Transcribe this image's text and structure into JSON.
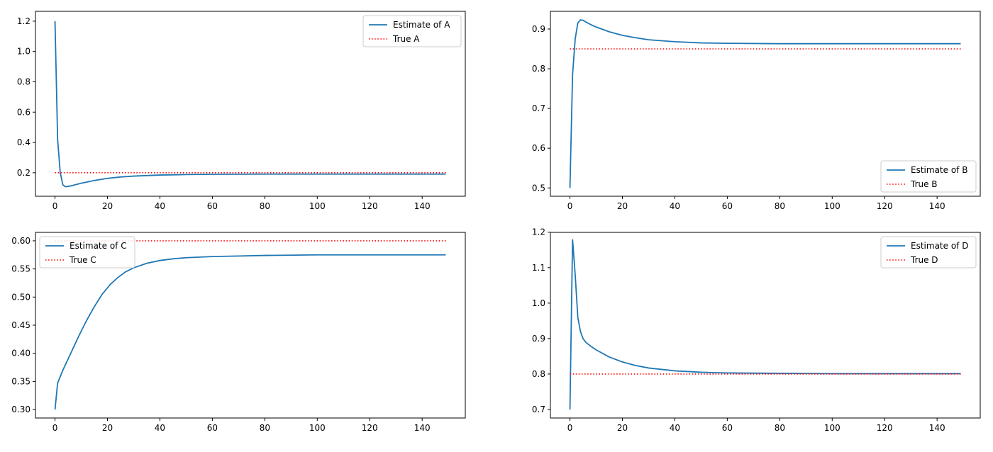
{
  "colors": {
    "estimate": "#1f77b4",
    "truth": "#ff0000",
    "axis": "#000000",
    "legend_border": "#cccccc"
  },
  "chart_data": [
    {
      "type": "line",
      "id": "A",
      "x_ticks": [
        0,
        20,
        40,
        60,
        80,
        100,
        120,
        140
      ],
      "y_ticks": [
        0.2,
        0.4,
        0.6,
        0.8,
        1.0,
        1.2
      ],
      "y_tick_labels": [
        "0.2",
        "0.4",
        "0.6",
        "0.8",
        "1.0",
        "1.2"
      ],
      "xlim": [
        -7.45,
        156.45
      ],
      "ylim": [
        0.045,
        1.265
      ],
      "legend": "top-right",
      "series": [
        {
          "name": "Estimate of A",
          "style": "solid",
          "color": "#1f77b4",
          "x": [
            0,
            1,
            2,
            3,
            4,
            6,
            8,
            10,
            15,
            20,
            25,
            30,
            40,
            50,
            60,
            80,
            100,
            120,
            149
          ],
          "y": [
            1.2,
            0.42,
            0.2,
            0.12,
            0.108,
            0.113,
            0.122,
            0.131,
            0.149,
            0.163,
            0.172,
            0.178,
            0.185,
            0.188,
            0.19,
            0.191,
            0.191,
            0.191,
            0.191
          ]
        },
        {
          "name": "True A",
          "style": "dotted",
          "color": "#ff0000",
          "x": [
            0,
            149
          ],
          "y": [
            0.2,
            0.2
          ]
        }
      ]
    },
    {
      "type": "line",
      "id": "B",
      "x_ticks": [
        0,
        20,
        40,
        60,
        80,
        100,
        120,
        140
      ],
      "y_ticks": [
        0.5,
        0.6,
        0.7,
        0.8,
        0.9
      ],
      "y_tick_labels": [
        "0.5",
        "0.6",
        "0.7",
        "0.8",
        "0.9"
      ],
      "xlim": [
        -7.45,
        156.45
      ],
      "ylim": [
        0.4791,
        0.9445
      ],
      "legend": "bottom-right",
      "series": [
        {
          "name": "Estimate of B",
          "style": "solid",
          "color": "#1f77b4",
          "x": [
            0,
            1,
            2,
            3,
            4,
            5,
            6,
            8,
            10,
            15,
            20,
            25,
            30,
            40,
            50,
            60,
            80,
            100,
            120,
            149
          ],
          "y": [
            0.5,
            0.785,
            0.875,
            0.915,
            0.923,
            0.922,
            0.918,
            0.911,
            0.905,
            0.893,
            0.884,
            0.878,
            0.873,
            0.868,
            0.865,
            0.864,
            0.863,
            0.863,
            0.863,
            0.863
          ]
        },
        {
          "name": "True B",
          "style": "dotted",
          "color": "#ff0000",
          "x": [
            0,
            149
          ],
          "y": [
            0.85,
            0.85
          ]
        }
      ]
    },
    {
      "type": "line",
      "id": "C",
      "x_ticks": [
        0,
        20,
        40,
        60,
        80,
        100,
        120,
        140
      ],
      "y_ticks": [
        0.3,
        0.35,
        0.4,
        0.45,
        0.5,
        0.55,
        0.6
      ],
      "y_tick_labels": [
        "0.30",
        "0.35",
        "0.40",
        "0.45",
        "0.50",
        "0.55",
        "0.60"
      ],
      "xlim": [
        -7.45,
        156.45
      ],
      "ylim": [
        0.285,
        0.615
      ],
      "legend": "top-left",
      "series": [
        {
          "name": "Estimate of C",
          "style": "solid",
          "color": "#1f77b4",
          "x": [
            0,
            1,
            3,
            6,
            9,
            12,
            15,
            18,
            21,
            24,
            27,
            30,
            35,
            40,
            45,
            50,
            60,
            70,
            80,
            100,
            120,
            149
          ],
          "y": [
            0.3,
            0.347,
            0.37,
            0.4,
            0.43,
            0.458,
            0.483,
            0.505,
            0.522,
            0.535,
            0.545,
            0.552,
            0.56,
            0.565,
            0.568,
            0.57,
            0.572,
            0.573,
            0.574,
            0.575,
            0.575,
            0.575
          ]
        },
        {
          "name": "True C",
          "style": "dotted",
          "color": "#ff0000",
          "x": [
            0,
            149
          ],
          "y": [
            0.6,
            0.6
          ]
        }
      ]
    },
    {
      "type": "line",
      "id": "D",
      "x_ticks": [
        0,
        20,
        40,
        60,
        80,
        100,
        120,
        140
      ],
      "y_ticks": [
        0.7,
        0.8,
        0.9,
        1.0,
        1.1,
        1.2
      ],
      "y_tick_labels": [
        "0.7",
        "0.8",
        "0.9",
        "1.0",
        "1.1",
        "1.2"
      ],
      "xlim": [
        -7.45,
        156.45
      ],
      "ylim": [
        0.676,
        1.1995
      ],
      "legend": "top-right",
      "series": [
        {
          "name": "Estimate of D",
          "style": "solid",
          "color": "#1f77b4",
          "x": [
            0,
            1,
            2,
            3,
            4,
            5,
            6,
            8,
            10,
            15,
            20,
            25,
            30,
            40,
            50,
            60,
            80,
            100,
            120,
            149
          ],
          "y": [
            0.7,
            1.18,
            1.08,
            0.96,
            0.92,
            0.9,
            0.89,
            0.878,
            0.868,
            0.848,
            0.834,
            0.824,
            0.817,
            0.809,
            0.805,
            0.803,
            0.802,
            0.801,
            0.801,
            0.801
          ]
        },
        {
          "name": "True D",
          "style": "dotted",
          "color": "#ff0000",
          "x": [
            0,
            149
          ],
          "y": [
            0.8,
            0.8
          ]
        }
      ]
    }
  ]
}
